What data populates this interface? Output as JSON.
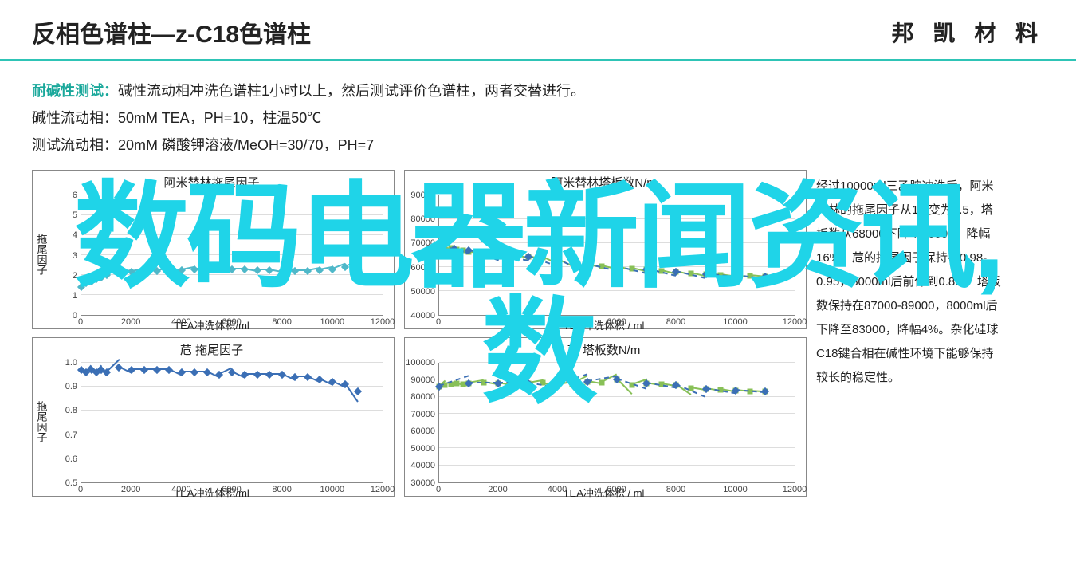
{
  "header": {
    "title": "反相色谱柱—z-C18色谱柱",
    "brand": "邦 凯 材 料"
  },
  "desc": {
    "label": "耐碱性测试：",
    "line1": "碱性流动相冲洗色谱柱1小时以上，然后测试评价色谱柱，两者交替进行。",
    "line2": "碱性流动相：50mM TEA，PH=10，柱温50℃",
    "line3": "测试流动相：20mM 磷酸钾溶液/MeOH=30/70，PH=7"
  },
  "watermark": {
    "line1": "数码电器新闻资讯,",
    "line2": "数"
  },
  "right_text": "经过10000ml三乙胺冲洗后，阿米替林的拖尾因子从1.4变为2.5，塔板数从68000下降至56000，降幅16%。苊的拖尾因子保持在0.98-0.95，8000ml后前伸到0.88； 塔板数保持在87000-89000，8000ml后下降至83000，降幅4%。杂化硅球C18键合相在碱性环境下能够保持较长的稳定性。",
  "charts": [
    {
      "id": "chart-amitriptyline-tailing",
      "class": "c1",
      "title": "阿米替林拖尾因子",
      "y_label": "拖尾因子",
      "x_label": "TEA冲洗体积/ml",
      "xlim": [
        0,
        12000
      ],
      "xtick_step": 2000,
      "ylim": [
        0,
        6
      ],
      "ytick_step": 1,
      "grid_color": "#dddddd",
      "border_color": "#888888",
      "series": [
        {
          "color": "#4fb8c9",
          "marker": "diamond",
          "data": [
            [
              0,
              1.4
            ],
            [
              200,
              1.6
            ],
            [
              400,
              1.7
            ],
            [
              600,
              1.8
            ],
            [
              800,
              1.9
            ],
            [
              1000,
              2.0
            ],
            [
              1500,
              2.1
            ],
            [
              2000,
              2.15
            ],
            [
              2500,
              2.2
            ],
            [
              3000,
              2.2
            ],
            [
              3500,
              2.25
            ],
            [
              4000,
              2.25
            ],
            [
              4500,
              2.3
            ],
            [
              5000,
              2.3
            ],
            [
              5500,
              2.3
            ],
            [
              6000,
              2.3
            ],
            [
              6500,
              2.3
            ],
            [
              7000,
              2.25
            ],
            [
              7500,
              2.25
            ],
            [
              8000,
              2.2
            ],
            [
              8500,
              2.2
            ],
            [
              9000,
              2.2
            ],
            [
              9500,
              2.25
            ],
            [
              10000,
              2.3
            ],
            [
              10500,
              2.4
            ],
            [
              11000,
              2.5
            ]
          ]
        }
      ]
    },
    {
      "id": "chart-acenaphthene-tailing",
      "class": "c1",
      "title": "苊 拖尾因子",
      "y_label": "拖尾因子",
      "x_label": "TEA冲洗体积/ml",
      "xlim": [
        0,
        12000
      ],
      "xtick_step": 2000,
      "ylim": [
        0.5,
        1.0
      ],
      "ytick_step": 0.1,
      "grid_color": "#dddddd",
      "border_color": "#888888",
      "series": [
        {
          "color": "#3b6fb5",
          "marker": "diamond",
          "data": [
            [
              0,
              0.97
            ],
            [
              200,
              0.96
            ],
            [
              400,
              0.97
            ],
            [
              600,
              0.96
            ],
            [
              800,
              0.97
            ],
            [
              1000,
              0.96
            ],
            [
              1500,
              0.98
            ],
            [
              2000,
              0.97
            ],
            [
              2500,
              0.97
            ],
            [
              3000,
              0.97
            ],
            [
              3500,
              0.97
            ],
            [
              4000,
              0.96
            ],
            [
              4500,
              0.96
            ],
            [
              5000,
              0.96
            ],
            [
              5500,
              0.95
            ],
            [
              6000,
              0.96
            ],
            [
              6500,
              0.95
            ],
            [
              7000,
              0.95
            ],
            [
              7500,
              0.95
            ],
            [
              8000,
              0.95
            ],
            [
              8500,
              0.94
            ],
            [
              9000,
              0.94
            ],
            [
              9500,
              0.93
            ],
            [
              10000,
              0.92
            ],
            [
              10500,
              0.91
            ],
            [
              11000,
              0.88
            ]
          ]
        }
      ]
    },
    {
      "id": "chart-amitriptyline-plates",
      "class": "c2",
      "title": "阿米替林塔板数N/m",
      "y_label": "",
      "x_label": "TEA冲洗体积 / ml",
      "xlim": [
        0,
        12000
      ],
      "xtick_step": 2000,
      "ylim": [
        40000,
        90000
      ],
      "ytick_step": 10000,
      "grid_color": "#dddddd",
      "border_color": "#888888",
      "series": [
        {
          "color": "#88c057",
          "marker": "square",
          "data": [
            [
              0,
              68000
            ],
            [
              200,
              68500
            ],
            [
              400,
              68000
            ],
            [
              600,
              67500
            ],
            [
              800,
              67000
            ],
            [
              1000,
              66500
            ],
            [
              1500,
              66000
            ],
            [
              2000,
              65500
            ],
            [
              2500,
              65000
            ],
            [
              3000,
              64500
            ],
            [
              3500,
              64000
            ],
            [
              4000,
              63000
            ],
            [
              4500,
              62000
            ],
            [
              5000,
              61000
            ],
            [
              5500,
              60500
            ],
            [
              6000,
              60000
            ],
            [
              6500,
              59500
            ],
            [
              7000,
              59000
            ],
            [
              7500,
              58500
            ],
            [
              8000,
              58000
            ],
            [
              8500,
              57500
            ],
            [
              9000,
              57000
            ],
            [
              9500,
              56800
            ],
            [
              10000,
              56500
            ],
            [
              10500,
              56200
            ],
            [
              11000,
              56000
            ]
          ]
        },
        {
          "color": "#3b6fb5",
          "marker": "diamond",
          "dashed": true,
          "data": [
            [
              0,
              68000
            ],
            [
              500,
              67800
            ],
            [
              1000,
              67000
            ],
            [
              2000,
              65500
            ],
            [
              3000,
              64500
            ],
            [
              4000,
              63000
            ],
            [
              5000,
              61000
            ],
            [
              6000,
              60000
            ],
            [
              7000,
              59000
            ],
            [
              8000,
              58000
            ],
            [
              9000,
              57000
            ],
            [
              10000,
              56500
            ],
            [
              11000,
              56000
            ]
          ]
        }
      ]
    },
    {
      "id": "chart-acenaphthene-plates",
      "class": "c2",
      "title": "苊 塔板数N/m",
      "y_label": "",
      "x_label": "TEA冲洗体积 / ml",
      "xlim": [
        0,
        12000
      ],
      "xtick_step": 2000,
      "ylim": [
        30000,
        100000
      ],
      "ytick_step": 10000,
      "grid_color": "#dddddd",
      "border_color": "#888888",
      "series": [
        {
          "color": "#88c057",
          "marker": "square",
          "data": [
            [
              0,
              86000
            ],
            [
              200,
              87000
            ],
            [
              400,
              87500
            ],
            [
              600,
              88000
            ],
            [
              800,
              87500
            ],
            [
              1000,
              88000
            ],
            [
              1500,
              88500
            ],
            [
              2000,
              88000
            ],
            [
              2500,
              87500
            ],
            [
              3000,
              88000
            ],
            [
              3500,
              88500
            ],
            [
              4000,
              87000
            ],
            [
              4500,
              87500
            ],
            [
              5000,
              89000
            ],
            [
              5500,
              88500
            ],
            [
              6000,
              90000
            ],
            [
              6500,
              87000
            ],
            [
              7000,
              88000
            ],
            [
              7500,
              87500
            ],
            [
              8000,
              87000
            ],
            [
              8500,
              85000
            ],
            [
              9000,
              84500
            ],
            [
              9500,
              84000
            ],
            [
              10000,
              83500
            ],
            [
              10500,
              83200
            ],
            [
              11000,
              83000
            ]
          ]
        },
        {
          "color": "#3b6fb5",
          "marker": "diamond",
          "dashed": true,
          "data": [
            [
              0,
              86000
            ],
            [
              1000,
              88000
            ],
            [
              2000,
              88000
            ],
            [
              3000,
              88000
            ],
            [
              4000,
              87000
            ],
            [
              5000,
              89000
            ],
            [
              6000,
              90000
            ],
            [
              7000,
              88000
            ],
            [
              8000,
              87000
            ],
            [
              9000,
              84500
            ],
            [
              10000,
              83500
            ],
            [
              11000,
              83000
            ]
          ]
        }
      ]
    }
  ]
}
